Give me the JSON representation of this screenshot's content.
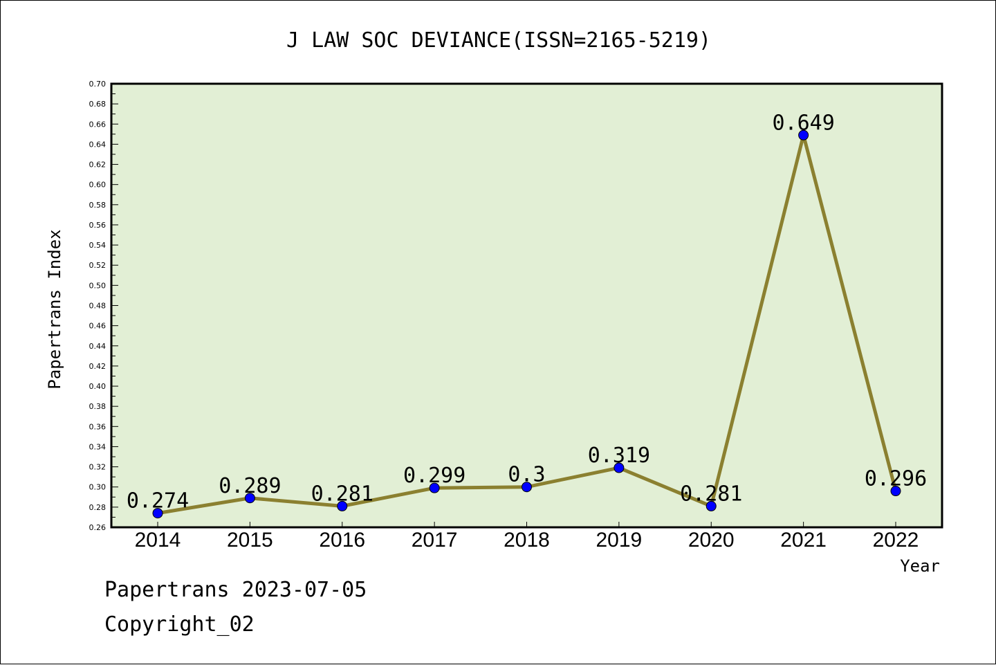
{
  "chart_data": {
    "type": "line",
    "title": "J LAW SOC DEVIANCE(ISSN=2165-5219)",
    "xlabel": "Year",
    "ylabel": "Papertrans Index",
    "categories": [
      "2014",
      "2015",
      "2016",
      "2017",
      "2018",
      "2019",
      "2020",
      "2021",
      "2022"
    ],
    "values": [
      0.274,
      0.289,
      0.281,
      0.299,
      0.3,
      0.319,
      0.281,
      0.649,
      0.296
    ],
    "data_labels": [
      "0.274",
      "0.289",
      "0.281",
      "0.299",
      "0.3",
      "0.319",
      "0.281",
      "0.649",
      "0.296"
    ],
    "ylim": [
      0.26,
      0.7
    ],
    "y_ticks": [
      "0.26",
      "0.28",
      "0.30",
      "0.32",
      "0.34",
      "0.36",
      "0.38",
      "0.40",
      "0.42",
      "0.44",
      "0.46",
      "0.48",
      "0.50",
      "0.52",
      "0.54",
      "0.56",
      "0.58",
      "0.60",
      "0.62",
      "0.64",
      "0.66",
      "0.68",
      "0.70"
    ],
    "grid": false,
    "colors": {
      "plot_background": "#e2efd5",
      "line": "#8b8030",
      "marker": "#0000ff",
      "frame": "#000000"
    }
  },
  "footer": {
    "line1": "Papertrans 2023-07-05",
    "line2": "Copyright_02"
  }
}
